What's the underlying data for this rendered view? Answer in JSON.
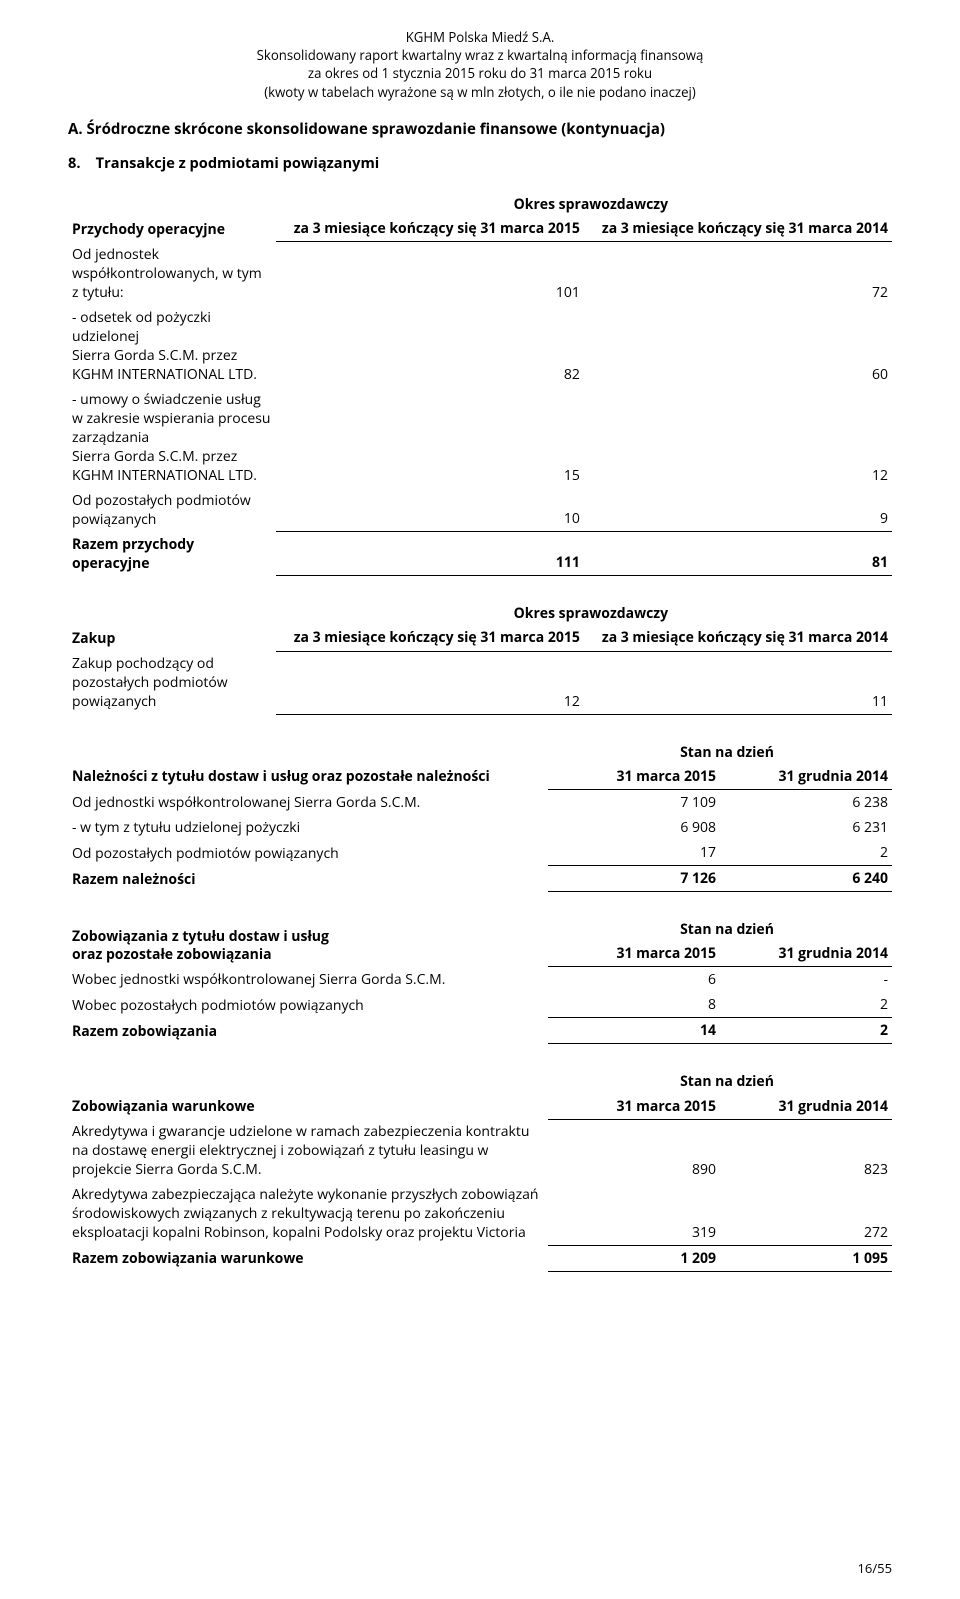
{
  "header": {
    "company": "KGHM Polska Miedź S.A.",
    "title": "Skonsolidowany raport kwartalny wraz z kwartalną informacją finansową",
    "period": "za okres od 1 stycznia 2015 roku do 31 marca 2015 roku",
    "note": "(kwoty w tabelach wyrażone są w mln złotych, o ile nie podano inaczej)"
  },
  "section_title": "A. Śródroczne skrócone skonsolidowane sprawozdanie finansowe (kontynuacja)",
  "subhead": "8.    Transakcje z podmiotami powiązanymi",
  "common": {
    "okres_spraw": "Okres sprawozdawczy",
    "stan_na_dzien": "Stan na dzień",
    "col_2015_okres": "za 3 miesiące\nkończący się\n31 marca 2015",
    "col_2014_okres": "za 3 miesiące\nkończący się\n31 marca 2014",
    "col_2015_stan": "31 marca 2015",
    "col_2014_stan": "31 grudnia 2014"
  },
  "t1": {
    "title": "Przychody operacyjne",
    "rows": [
      {
        "label": "Od jednostek współkontrolowanych, w tym z tytułu:",
        "v1": "101",
        "v2": "72",
        "underline": false
      },
      {
        "label": " - odsetek od pożyczki udzielonej\nSierra Gorda S.C.M. przez KGHM INTERNATIONAL LTD.",
        "v1": "82",
        "v2": "60",
        "underline": false
      },
      {
        "label": " - umowy o świadczenie usług\nw zakresie wspierania procesu zarządzania\nSierra Gorda S.C.M. przez KGHM INTERNATIONAL LTD.",
        "v1": "15",
        "v2": "12",
        "underline": false
      },
      {
        "label": "Od pozostałych podmiotów powiązanych",
        "v1": "10",
        "v2": "9",
        "underline": true
      }
    ],
    "total": {
      "label": "Razem przychody operacyjne",
      "v1": "111",
      "v2": "81"
    }
  },
  "t2": {
    "title": "Zakup",
    "rows": [
      {
        "label": "Zakup pochodzący od pozostałych podmiotów powiązanych",
        "v1": "12",
        "v2": "11",
        "underline": true
      }
    ]
  },
  "t3": {
    "title": "Należności z tytułu dostaw i usług oraz pozostałe należności",
    "rows": [
      {
        "label": "Od jednostki współkontrolowanej Sierra Gorda S.C.M.",
        "v1": "7 109",
        "v2": "6 238",
        "underline": false
      },
      {
        "label": "- w tym z tytułu udzielonej pożyczki",
        "v1": "6 908",
        "v2": "6 231",
        "underline": false
      },
      {
        "label": "Od pozostałych podmiotów powiązanych",
        "v1": "17",
        "v2": "2",
        "underline": true
      }
    ],
    "total": {
      "label": "Razem należności",
      "v1": "7 126",
      "v2": "6 240"
    }
  },
  "t4": {
    "title": "Zobowiązania z tytułu dostaw i usług\noraz pozostałe zobowiązania",
    "rows": [
      {
        "label": "Wobec jednostki współkontrolowanej Sierra Gorda S.C.M.",
        "v1": "6",
        "v2": "-",
        "underline": false
      },
      {
        "label": "Wobec pozostałych podmiotów powiązanych",
        "v1": "8",
        "v2": "2",
        "underline": true
      }
    ],
    "total": {
      "label": "Razem zobowiązania",
      "v1": "14",
      "v2": "2"
    }
  },
  "t5": {
    "title": "Zobowiązania warunkowe",
    "rows": [
      {
        "label": "Akredytywa i gwarancje udzielone w ramach zabezpieczenia kontraktu na dostawę energii elektrycznej i zobowiązań z tytułu leasingu w projekcie Sierra Gorda S.C.M.",
        "v1": "890",
        "v2": "823",
        "underline": false
      },
      {
        "label": "Akredytywa zabezpieczająca należyte wykonanie przyszłych zobowiązań środowiskowych związanych z rekultywacją terenu po zakończeniu eksploatacji kopalni Robinson, kopalni Podolsky oraz projektu Victoria",
        "v1": "319",
        "v2": "272",
        "underline": true
      }
    ],
    "total": {
      "label": "Razem zobowiązania warunkowe",
      "v1": "1 209",
      "v2": "1 095"
    }
  },
  "footer": "16/55"
}
